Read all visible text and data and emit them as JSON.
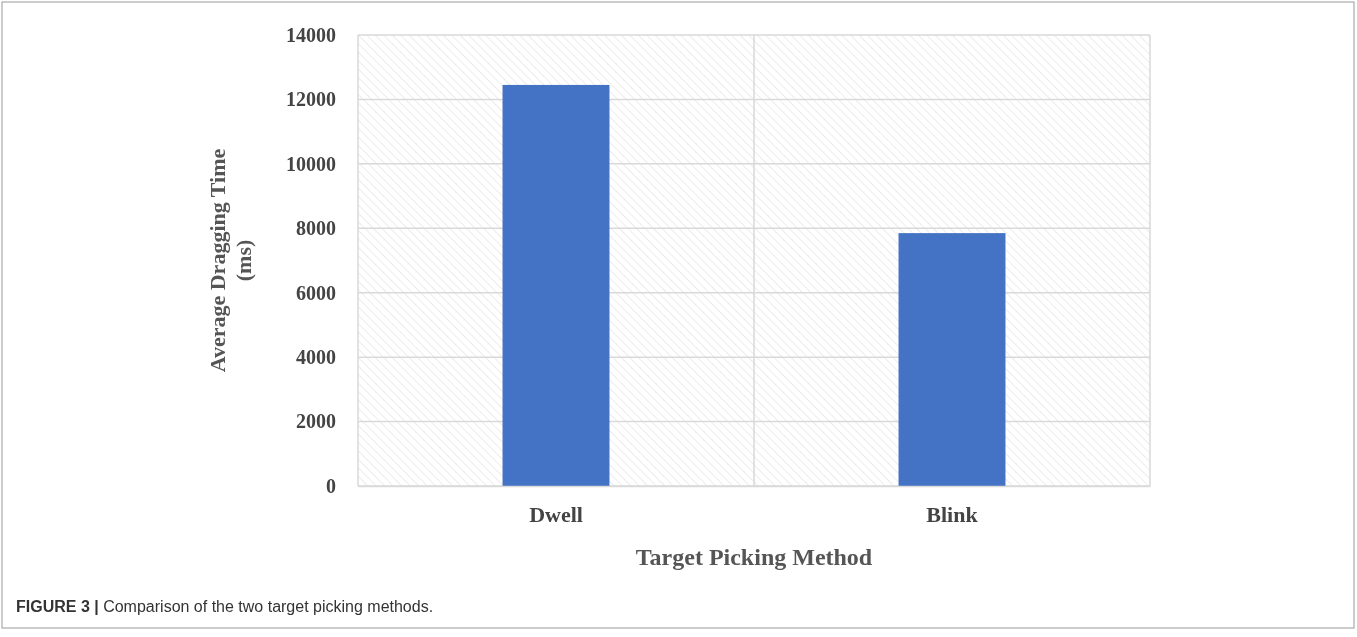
{
  "chart_data": {
    "type": "bar",
    "categories": [
      "Dwell",
      "Blink"
    ],
    "values": [
      12450,
      7850
    ],
    "color": "#4472c4",
    "ylim": [
      0,
      14000
    ],
    "yticks": [
      0,
      2000,
      4000,
      6000,
      8000,
      10000,
      12000,
      14000
    ],
    "grid": true,
    "xlabel": "Target Picking Method",
    "ylabel": "Average Dragging Time (ms)",
    "annotations": [
      "FIGURE 3 | Comparison of the two target picking methods."
    ]
  }
}
